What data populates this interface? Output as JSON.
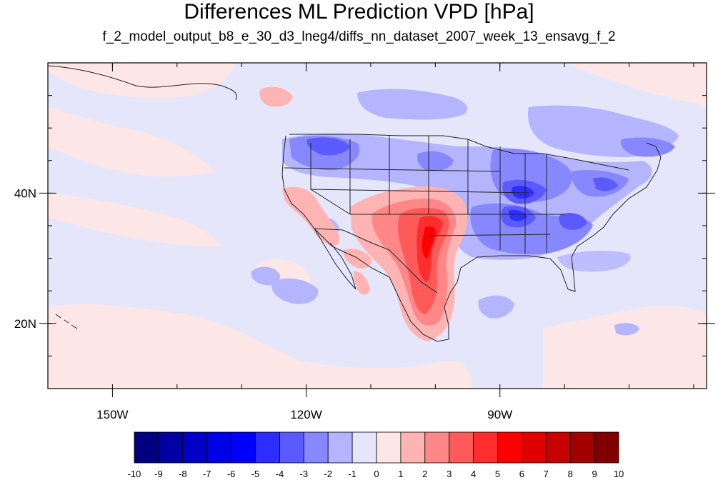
{
  "title": "Differences ML Prediction VPD [hPa]",
  "subtitle": "f_2_model_output_b8_e_30_d3_lneg4/diffs_nn_dataset_2007_week_13_ensavg_f_2",
  "map": {
    "lon_range": [
      -160,
      -58
    ],
    "lat_range": [
      10,
      60
    ],
    "x_ticks": [
      {
        "value": -150,
        "label": "150W"
      },
      {
        "value": -120,
        "label": "120W"
      },
      {
        "value": -90,
        "label": "90W"
      }
    ],
    "y_ticks": [
      {
        "value": 40,
        "label": "40N"
      },
      {
        "value": 20,
        "label": "20N"
      }
    ],
    "minor_lon_step": 10,
    "minor_lat_step": 5,
    "background_color": "#e6e6fb"
  },
  "colorbar": {
    "colors": [
      "#000080",
      "#0000a3",
      "#0000c7",
      "#0000e6",
      "#0000ff",
      "#2d2dff",
      "#5a5aff",
      "#8787ff",
      "#b4b4ff",
      "#e6e6fb",
      "#fde6e6",
      "#ffb4b4",
      "#ff8787",
      "#ff5a5a",
      "#ff2d2d",
      "#ff0000",
      "#e00000",
      "#c70000",
      "#a30000",
      "#800000"
    ],
    "labels": [
      "-10",
      "-9",
      "-8",
      "-7",
      "-6",
      "-5",
      "-4",
      "-3",
      "-2",
      "-1",
      "0",
      "1",
      "2",
      "3",
      "4",
      "5",
      "6",
      "7",
      "8",
      "9",
      "10"
    ]
  }
}
